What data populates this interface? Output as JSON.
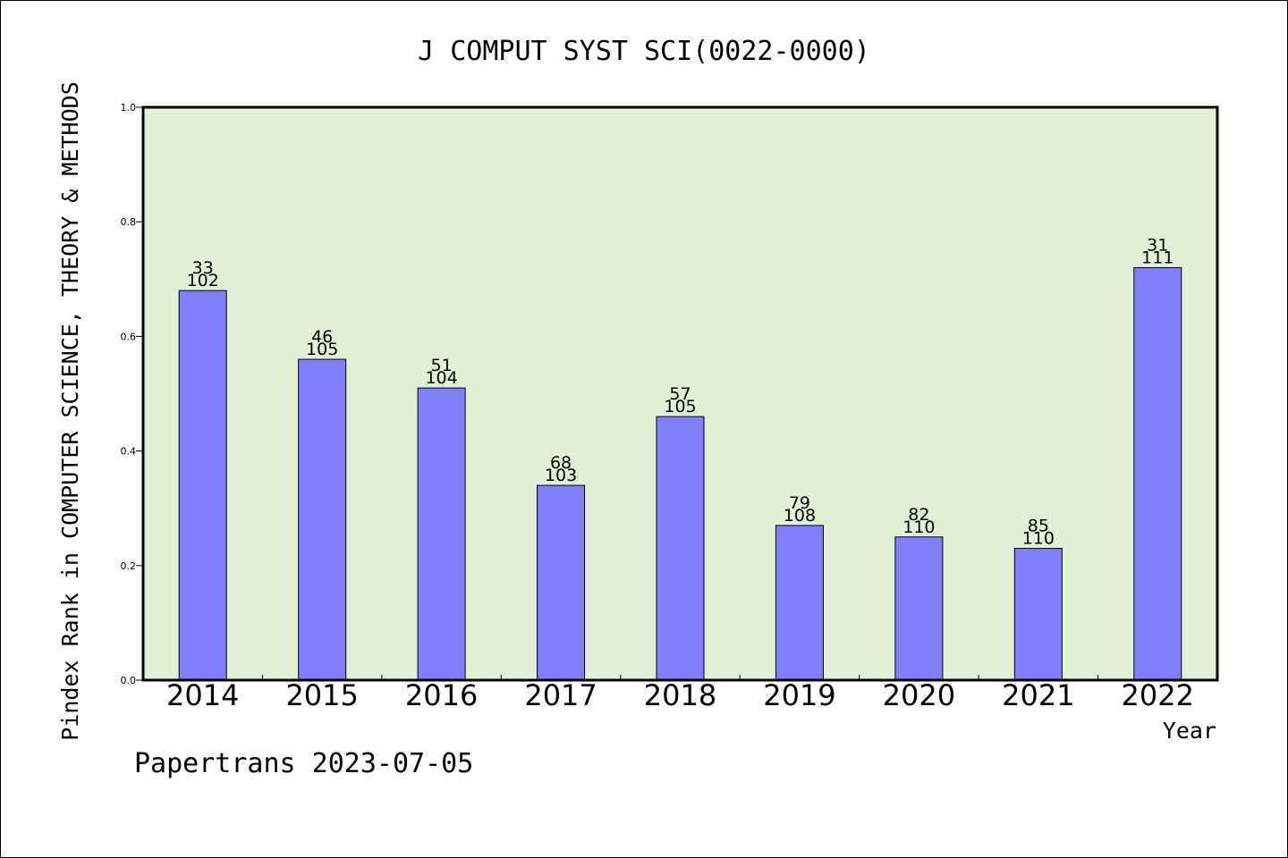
{
  "chart_data": {
    "type": "bar",
    "title": "J COMPUT SYST SCI(0022-0000)",
    "xlabel": "Year",
    "ylabel": "Pindex Rank in COMPUTER SCIENCE, THEORY & METHODS",
    "footer": "Papertrans 2023-07-05",
    "ylim": [
      0,
      1.0
    ],
    "yticks": [
      "0.0",
      "0.2",
      "0.4",
      "0.6",
      "0.8",
      "1.0"
    ],
    "categories": [
      "2014",
      "2015",
      "2016",
      "2017",
      "2018",
      "2019",
      "2020",
      "2021",
      "2022"
    ],
    "values": [
      0.68,
      0.56,
      0.51,
      0.34,
      0.46,
      0.27,
      0.25,
      0.23,
      0.72
    ],
    "rank_labels": [
      "33",
      "46",
      "51",
      "68",
      "57",
      "79",
      "82",
      "85",
      "31"
    ],
    "total_labels": [
      "102",
      "105",
      "104",
      "103",
      "105",
      "108",
      "110",
      "110",
      "111"
    ],
    "grid": false,
    "colors": {
      "plot_background": "#e2f0d6",
      "bar_fill": "#8080ff",
      "bar_stroke": "#000000"
    }
  }
}
